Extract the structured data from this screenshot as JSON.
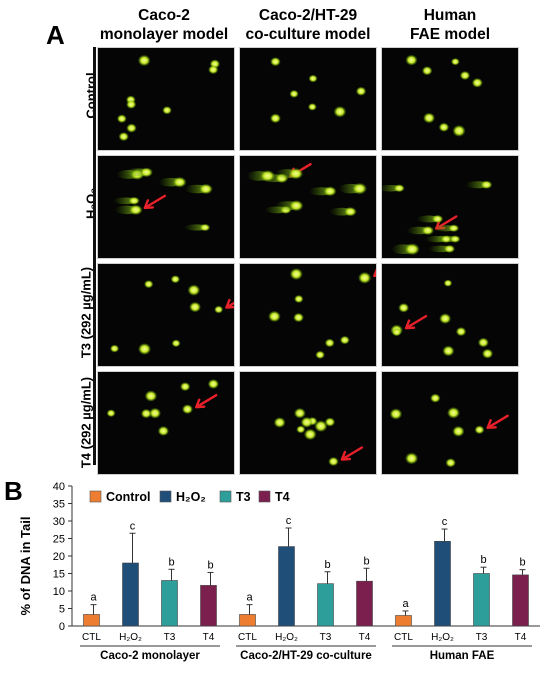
{
  "panel_a": {
    "letter": "A",
    "columns": [
      "Caco-2",
      "monolayer model",
      "Caco-2/HT-29",
      "co-culture model",
      "Human",
      "FAE model"
    ],
    "rows": [
      "Control",
      "H₂O₂",
      "T3 (292 µg/mL)",
      "T4 (292 µg/mL)"
    ]
  },
  "panel_b": {
    "letter": "B",
    "legend": [
      "Control",
      "H₂O₂",
      "T3",
      "T4"
    ]
  },
  "colors": {
    "control": "#ed7d31",
    "h2o2": "#1f4e79",
    "t3": "#2e9e9a",
    "t4": "#7b1f4f",
    "comet": "#c8e82a"
  },
  "chart_data": {
    "type": "bar",
    "ylabel": "% of DNA in Tail",
    "ylim": [
      0,
      40
    ],
    "yticks": [
      0,
      5,
      10,
      15,
      20,
      25,
      30,
      35,
      40
    ],
    "groups": [
      "Caco-2 monolayer",
      "Caco-2/HT-29 co-culture",
      "Human FAE"
    ],
    "categories": [
      "CTL",
      "H₂O₂",
      "T3",
      "T4"
    ],
    "series": [
      {
        "group": "Caco-2 monolayer",
        "values": [
          3.3,
          18.0,
          13.0,
          11.6
        ],
        "errors": [
          2.8,
          8.5,
          3.2,
          3.7
        ],
        "letters": [
          "a",
          "c",
          "b",
          "b"
        ]
      },
      {
        "group": "Caco-2/HT-29 co-culture",
        "values": [
          3.3,
          22.7,
          12.1,
          12.8
        ],
        "errors": [
          2.8,
          5.3,
          3.4,
          3.7
        ],
        "letters": [
          "a",
          "c",
          "b",
          "b"
        ]
      },
      {
        "group": "Human FAE",
        "values": [
          3.0,
          24.2,
          15.0,
          14.6
        ],
        "errors": [
          1.3,
          3.5,
          1.8,
          1.5
        ],
        "letters": [
          "a",
          "c",
          "b",
          "b"
        ]
      }
    ]
  }
}
